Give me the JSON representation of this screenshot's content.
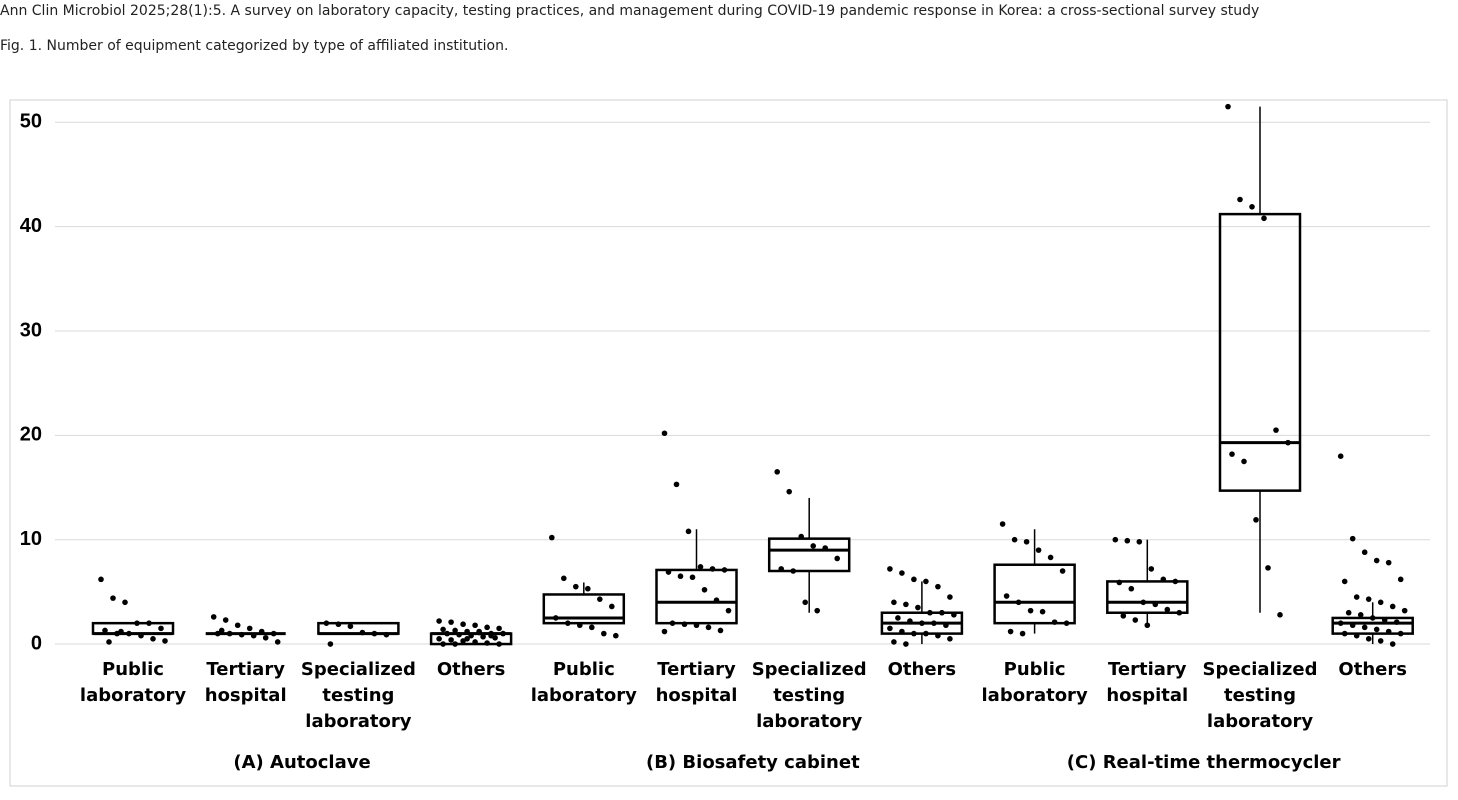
{
  "citation": "Ann Clin Microbiol 2025;28(1):5. A survey on laboratory capacity, testing practices, and management during COVID-19 pandemic response in Korea: a cross-sectional survey study",
  "caption": "Fig. 1. Number of equipment categorized by type of affiliated institution.",
  "chart_data": {
    "type": "box",
    "ylim": [
      -0.6,
      51.8
    ],
    "yticks": [
      0,
      10,
      20,
      30,
      40,
      50
    ],
    "grid": true,
    "box_color": "#000000",
    "point_color": "#000000",
    "groups": [
      {
        "name": "(A) Autoclave",
        "categories": [
          "Public laboratory",
          "Tertiary hospital",
          "Specialized testing laboratory",
          "Others"
        ],
        "boxes": [
          {
            "min": 1,
            "q1": 1,
            "median": 1,
            "q3": 2,
            "max": 2,
            "points": [
              6.2,
              4.4,
              4,
              2,
              2,
              1.5,
              1.3,
              1,
              1,
              0.8,
              0.5,
              0.3,
              0.2,
              1.2
            ]
          },
          {
            "min": 1,
            "q1": 1,
            "median": 1,
            "q3": 1,
            "max": 1,
            "points": [
              2.6,
              2.3,
              1.8,
              1.5,
              1.2,
              1,
              1,
              1,
              0.9,
              0.8,
              0.6,
              0.2,
              1.3
            ]
          },
          {
            "min": 1,
            "q1": 1,
            "median": 1,
            "q3": 2,
            "max": 2,
            "points": [
              2,
              1.9,
              1.7,
              1.1,
              1,
              0.9,
              0
            ]
          },
          {
            "min": 0,
            "q1": 0,
            "median": 1,
            "q3": 1,
            "max": 1,
            "points": [
              2.2,
              2.1,
              1.9,
              1.8,
              1.6,
              1.5,
              1.4,
              1.3,
              1.2,
              1.1,
              1,
              1,
              1,
              0.9,
              0.8,
              0.7,
              0.6,
              0.5,
              0.4,
              0.3,
              0.2,
              0.1,
              0,
              0,
              0,
              0.5,
              1.2,
              0.8
            ]
          }
        ]
      },
      {
        "name": "(B) Biosafety cabinet",
        "categories": [
          "Public laboratory",
          "Tertiary hospital",
          "Specialized testing laboratory",
          "Others"
        ],
        "boxes": [
          {
            "min": 2,
            "q1": 2,
            "median": 2.5,
            "q3": 4.75,
            "max": 5.9,
            "points": [
              10.2,
              6.3,
              5.5,
              5.3,
              4.3,
              3.6,
              2.5,
              2,
              1.8,
              1.6,
              1,
              0.8
            ]
          },
          {
            "min": 2,
            "q1": 2,
            "median": 4,
            "q3": 7.1,
            "max": 11,
            "points": [
              20.2,
              15.3,
              10.8,
              7.4,
              7.2,
              7.1,
              6.9,
              6.5,
              6.4,
              5.2,
              4.2,
              3.2,
              2,
              1.9,
              1.8,
              1.6,
              1.3,
              1.2
            ]
          },
          {
            "min": 3,
            "q1": 7,
            "median": 9,
            "q3": 10.1,
            "max": 14,
            "points": [
              16.5,
              14.6,
              10.3,
              9.4,
              9.2,
              8.2,
              7.2,
              7,
              4,
              3.2
            ]
          },
          {
            "min": 0,
            "q1": 1,
            "median": 2,
            "q3": 3,
            "max": 6,
            "points": [
              7.2,
              6.8,
              6.2,
              6,
              5.5,
              4.5,
              4,
              3.8,
              3.5,
              3,
              3,
              2.8,
              2.5,
              2.2,
              2,
              2,
              1.8,
              1.5,
              1.2,
              1,
              1,
              0.8,
              0.5,
              0.2,
              0
            ]
          }
        ]
      },
      {
        "name": "(C) Real-time thermocycler",
        "categories": [
          "Public laboratory",
          "Tertiary hospital",
          "Specialized testing laboratory",
          "Others"
        ],
        "boxes": [
          {
            "min": 1,
            "q1": 2,
            "median": 4,
            "q3": 7.6,
            "max": 11,
            "points": [
              11.5,
              10,
              9.8,
              9,
              8.3,
              7,
              4.6,
              4,
              3.2,
              3.1,
              2.1,
              2,
              1.2,
              1
            ]
          },
          {
            "min": 2,
            "q1": 3,
            "median": 4,
            "q3": 6,
            "max": 10,
            "points": [
              10,
              9.9,
              9.8,
              7.2,
              6.2,
              6,
              5.9,
              5.3,
              4,
              3.8,
              3.3,
              3,
              2.7,
              2.3,
              1.8
            ]
          },
          {
            "min": 3,
            "q1": 14.7,
            "median": 19.3,
            "q3": 41.2,
            "max": 51.5,
            "points": [
              51.5,
              42.6,
              41.9,
              40.8,
              20.5,
              19.3,
              18.2,
              17.5,
              11.9,
              7.3,
              2.8
            ]
          },
          {
            "min": 0,
            "q1": 1,
            "median": 2,
            "q3": 2.5,
            "max": 4,
            "points": [
              18,
              10.1,
              8.8,
              8,
              7.8,
              6.2,
              6,
              4.5,
              4.3,
              4,
              3.6,
              3.2,
              3,
              2.8,
              2.5,
              2.3,
              2.1,
              2,
              1.8,
              1.6,
              1.4,
              1.2,
              1,
              1,
              0.8,
              0.5,
              0.3,
              0
            ]
          }
        ]
      }
    ]
  }
}
